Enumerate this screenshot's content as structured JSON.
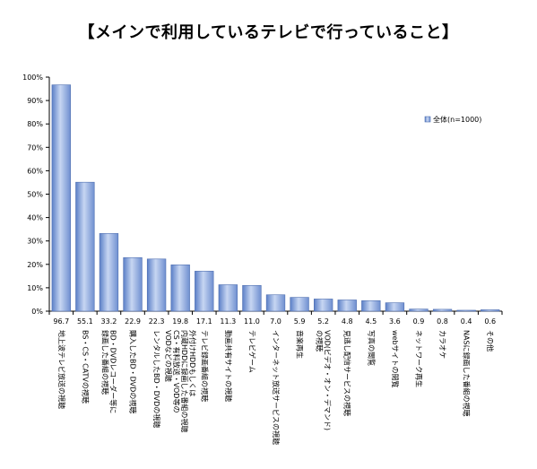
{
  "chart_data": {
    "type": "bar",
    "title": "【メインで利用しているテレビで行っていること】",
    "xlabel": "",
    "ylabel": "",
    "ylim": [
      0,
      100
    ],
    "yticks": [
      "0%",
      "10%",
      "20%",
      "30%",
      "40%",
      "50%",
      "60%",
      "70%",
      "80%",
      "90%",
      "100%"
    ],
    "grid": false,
    "legend_position": "right",
    "bar_color": "#7f9fd8",
    "categories": [
      [
        "地上波テレビ放送の視聴"
      ],
      [
        "BS・CS・CATVの視聴"
      ],
      [
        "BD・DVDレコーダー等に",
        "録画した番組の視聴"
      ],
      [
        "購入したBD・DVDの視聴"
      ],
      [
        "レンタルしたBD・DVDの視聴"
      ],
      [
        "外付けHDDもしくは",
        "内蔵HDDに録画した番組の視聴",
        "CS・有料放送・VOD等の",
        "VODなどの視聴"
      ],
      [
        "テレビ録画番組の視聴"
      ],
      [
        "動画共有サイトの視聴"
      ],
      [
        "テレビゲーム"
      ],
      [
        "インターネット放送サービスの視聴"
      ],
      [
        "音楽再生"
      ],
      [
        "VOD(ビデオ・オン・デマンド)",
        "の視聴"
      ],
      [
        "見逃し配信サービスの視聴"
      ],
      [
        "写真の閲覧"
      ],
      [
        "webサイトの閲覧"
      ],
      [
        "ネットワーク再生"
      ],
      [
        "カラオケ"
      ],
      [
        "NASに録画した番組の視聴"
      ],
      [
        "その他"
      ]
    ],
    "series": [
      {
        "name": "全体(n=1000)",
        "values": [
          96.7,
          55.1,
          33.2,
          22.9,
          22.3,
          19.8,
          17.1,
          11.3,
          11.0,
          7.0,
          5.9,
          5.2,
          4.8,
          4.5,
          3.6,
          0.9,
          0.8,
          0.4,
          0.6
        ]
      }
    ]
  }
}
